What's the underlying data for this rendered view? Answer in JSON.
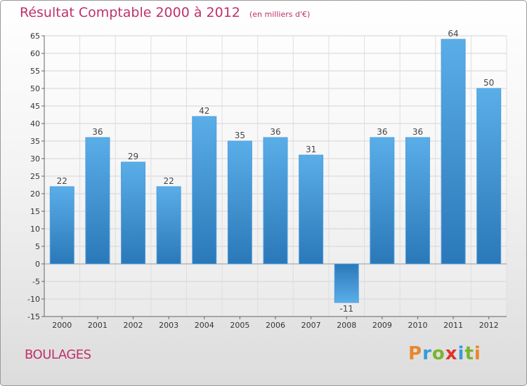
{
  "header": {
    "title": "Résultat Comptable 2000 à 2012",
    "subtitle": "(en milliers d'€)"
  },
  "commune": "BOULAGES",
  "logo": {
    "text": "Proxiti",
    "colors": [
      "#e8872c",
      "#3a9ad9",
      "#79b52c",
      "#e0332a"
    ]
  },
  "colors": {
    "bar_light": "#5aaee8",
    "bar_dark": "#2a78b8",
    "title": "#c0306a"
  },
  "chart_data": {
    "type": "bar",
    "title": "Résultat Comptable 2000 à 2012",
    "subtitle": "(en milliers d'€)",
    "xlabel": "",
    "ylabel": "",
    "categories": [
      "2000",
      "2001",
      "2002",
      "2003",
      "2004",
      "2005",
      "2006",
      "2007",
      "2008",
      "2009",
      "2010",
      "2011",
      "2012"
    ],
    "values": [
      22,
      36,
      29,
      22,
      42,
      35,
      36,
      31,
      -11,
      36,
      36,
      64,
      50
    ],
    "data_labels": [
      "22",
      "36",
      "29",
      "22",
      "42",
      "35",
      "36",
      "31",
      "-11",
      "36",
      "36",
      "64",
      "50"
    ],
    "ylim": [
      -15,
      65
    ],
    "yticks": [
      -15,
      -10,
      -5,
      0,
      5,
      10,
      15,
      20,
      25,
      30,
      35,
      40,
      45,
      50,
      55,
      60,
      65
    ],
    "grid": true
  }
}
